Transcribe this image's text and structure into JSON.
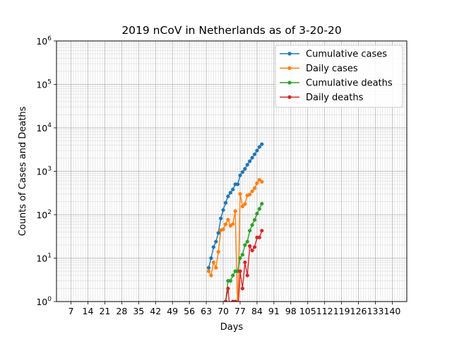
{
  "chart_data": {
    "type": "line",
    "title": "2019 nCoV in Netherlands as of 3-20-20",
    "xlabel": "Days",
    "ylabel": "Counts of Cases and Deaths",
    "yscale": "log",
    "xlim": [
      1,
      146
    ],
    "ylim": [
      1,
      1000000
    ],
    "xticks": [
      7,
      14,
      21,
      28,
      35,
      42,
      49,
      56,
      63,
      70,
      77,
      84,
      91,
      98,
      105,
      112,
      119,
      126,
      133,
      140
    ],
    "yticks": [
      {
        "value": 1,
        "base": "10",
        "exp": "0"
      },
      {
        "value": 10,
        "base": "10",
        "exp": "1"
      },
      {
        "value": 100,
        "base": "10",
        "exp": "2"
      },
      {
        "value": 1000,
        "base": "10",
        "exp": "3"
      },
      {
        "value": 10000,
        "base": "10",
        "exp": "4"
      },
      {
        "value": 100000,
        "base": "10",
        "exp": "5"
      },
      {
        "value": 1000000,
        "base": "10",
        "exp": "6"
      }
    ],
    "grid": true,
    "legend_position": "top-right",
    "series": [
      {
        "name": "Cumulative cases",
        "color": "#1f77b4",
        "x": [
          64,
          65,
          66,
          67,
          68,
          69,
          70,
          71,
          72,
          73,
          74,
          75,
          76,
          77,
          78,
          79,
          80,
          81,
          82,
          83,
          84,
          85,
          86
        ],
        "y": [
          6,
          10,
          18,
          24,
          38,
          82,
          128,
          188,
          265,
          321,
          382,
          503,
          503,
          804,
          959,
          1135,
          1413,
          1705,
          2051,
          2460,
          2994,
          3631,
          4204
        ]
      },
      {
        "name": "Daily cases",
        "color": "#ff7f0e",
        "x": [
          64,
          65,
          66,
          67,
          68,
          69,
          70,
          71,
          72,
          73,
          74,
          75,
          76,
          77,
          78,
          79,
          80,
          81,
          82,
          83,
          84,
          85,
          86
        ],
        "y": [
          5,
          4,
          8,
          6,
          14,
          44,
          46,
          60,
          77,
          56,
          61,
          121,
          0.5,
          301,
          155,
          176,
          278,
          292,
          346,
          409,
          534,
          637,
          573
        ]
      },
      {
        "name": "Cumulative deaths",
        "color": "#2ca02c",
        "x": [
          70,
          71,
          72,
          73,
          74,
          75,
          76,
          77,
          78,
          79,
          80,
          81,
          82,
          83,
          84,
          85,
          86
        ],
        "y": [
          0.5,
          1,
          3,
          3,
          4,
          5,
          5,
          10,
          12,
          20,
          24,
          43,
          58,
          76,
          106,
          136,
          179
        ]
      },
      {
        "name": "Daily deaths",
        "color": "#d62728",
        "x": [
          70,
          71,
          72,
          73,
          74,
          75,
          76,
          77,
          78,
          79,
          80,
          81,
          82,
          83,
          84,
          85,
          86
        ],
        "y": [
          0.5,
          1,
          2,
          0.5,
          1,
          1,
          0.5,
          5,
          2,
          8,
          4,
          19,
          15,
          18,
          30,
          30,
          43
        ]
      }
    ]
  }
}
